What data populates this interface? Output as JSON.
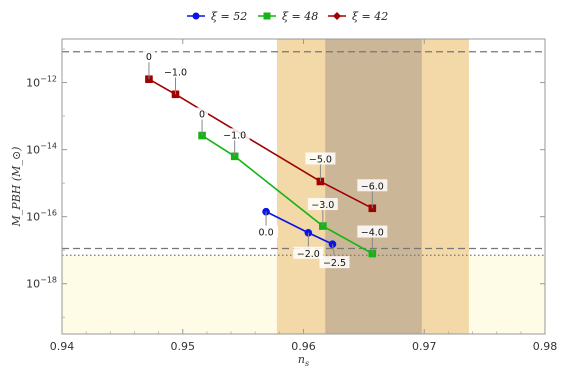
{
  "chart_data": {
    "type": "scatter",
    "title": "",
    "xlabel": "n_s",
    "ylabel": "M_PBH (M_⊙)",
    "xlim": [
      0.94,
      0.98
    ],
    "ylim_log10": [
      -19.5,
      -10.7
    ],
    "x_ticks": [
      {
        "value": 0.94,
        "label": "0.94"
      },
      {
        "value": 0.95,
        "label": "0.95"
      },
      {
        "value": 0.96,
        "label": "0.96"
      },
      {
        "value": 0.97,
        "label": "0.97"
      },
      {
        "value": 0.98,
        "label": "0.98"
      }
    ],
    "y_ticks": [
      {
        "exp": -12,
        "base": "10",
        "sup": "−12"
      },
      {
        "exp": -14,
        "base": "10",
        "sup": "−14"
      },
      {
        "exp": -16,
        "base": "10",
        "sup": "−16"
      },
      {
        "exp": -18,
        "base": "10",
        "sup": "−18"
      }
    ],
    "legend_position": "top-center",
    "series": [
      {
        "name": "ξ = 52",
        "color": "#0a14e6",
        "marker": "circle",
        "points": [
          {
            "x": 0.9569,
            "y_exp": -15.85,
            "label": "0.0"
          },
          {
            "x": 0.9604,
            "y_exp": -16.48,
            "label": "−2.0"
          },
          {
            "x": 0.9624,
            "y_exp": -16.82,
            "label": "−2.5"
          }
        ]
      },
      {
        "name": "ξ = 48",
        "color": "#14b414",
        "marker": "square",
        "points": [
          {
            "x": 0.9516,
            "y_exp": -13.58,
            "label": "0"
          },
          {
            "x": 0.9543,
            "y_exp": -14.2,
            "label": "−1.0"
          },
          {
            "x": 0.9616,
            "y_exp": -16.28,
            "label": "−3.0"
          },
          {
            "x": 0.9657,
            "y_exp": -17.1,
            "label": "−4.0"
          }
        ]
      },
      {
        "name": "ξ = 42",
        "color": "#a00000",
        "marker": "square",
        "points": [
          {
            "x": 0.9472,
            "y_exp": -11.9,
            "label": "0"
          },
          {
            "x": 0.9494,
            "y_exp": -12.35,
            "label": "−1.0"
          },
          {
            "x": 0.9614,
            "y_exp": -14.95,
            "label": "−5.0"
          },
          {
            "x": 0.9657,
            "y_exp": -15.75,
            "label": "−6.0"
          }
        ]
      }
    ],
    "bands": [
      {
        "x": [
          0.9578,
          0.9737
        ],
        "color": "#f3d9a8"
      },
      {
        "x": [
          0.9618,
          0.9698
        ],
        "color": "#cbb798"
      }
    ],
    "shaded_region": {
      "y_exp_max": -17.15,
      "color": "#fefbe6"
    },
    "hlines": [
      {
        "y_exp": -11.08,
        "style": "dashed",
        "color": "#777777"
      },
      {
        "y_exp": -16.95,
        "style": "dashed",
        "color": "#777777"
      },
      {
        "y_exp": -17.15,
        "style": "dotted",
        "color": "#777777"
      }
    ]
  }
}
